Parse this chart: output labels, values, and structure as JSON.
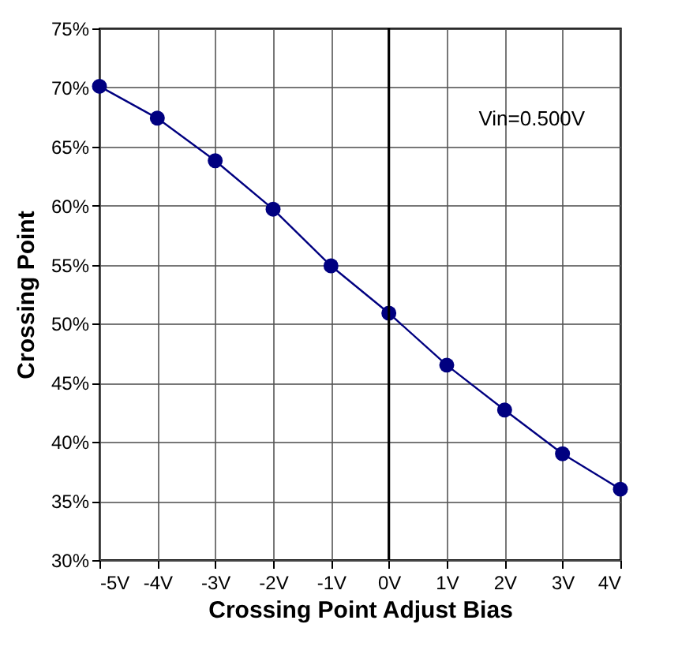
{
  "chart_data": {
    "type": "line",
    "xlabel": "Crossing Point Adjust Bias",
    "ylabel": "Crossing Point",
    "x": [
      -5,
      -4,
      -3,
      -2,
      -1,
      0,
      1,
      2,
      3,
      4
    ],
    "series": [
      {
        "color": "#000080",
        "values": [
          70.1,
          67.4,
          63.8,
          59.7,
          54.9,
          50.9,
          46.5,
          42.7,
          39.0,
          36.0
        ]
      }
    ],
    "xlim": [
      -5,
      4
    ],
    "xticks": [
      {
        "value": -5,
        "label": "-5V"
      },
      {
        "value": -4,
        "label": "-4V"
      },
      {
        "value": -3,
        "label": "-3V"
      },
      {
        "value": -2,
        "label": "-2V"
      },
      {
        "value": -1,
        "label": "-1V"
      },
      {
        "value": 0,
        "label": "0V"
      },
      {
        "value": 1,
        "label": "1V"
      },
      {
        "value": 2,
        "label": "2V"
      },
      {
        "value": 3,
        "label": "3V"
      },
      {
        "value": 4,
        "label": "4V"
      }
    ],
    "ylim": [
      30,
      75
    ],
    "yticks": [
      {
        "value": 30,
        "label": "30%"
      },
      {
        "value": 35,
        "label": "35%"
      },
      {
        "value": 40,
        "label": "40%"
      },
      {
        "value": 45,
        "label": "45%"
      },
      {
        "value": 50,
        "label": "50%"
      },
      {
        "value": 55,
        "label": "55%"
      },
      {
        "value": 60,
        "label": "60%"
      },
      {
        "value": 65,
        "label": "65%"
      },
      {
        "value": 70,
        "label": "70%"
      },
      {
        "value": 75,
        "label": "75%"
      }
    ],
    "ref_lines": [
      {
        "axis": "x",
        "value": 0,
        "color": "#000000"
      }
    ],
    "annotations": [
      "Vin=0.500V"
    ],
    "grid": true,
    "marker": "circle",
    "line_style": "solid"
  }
}
